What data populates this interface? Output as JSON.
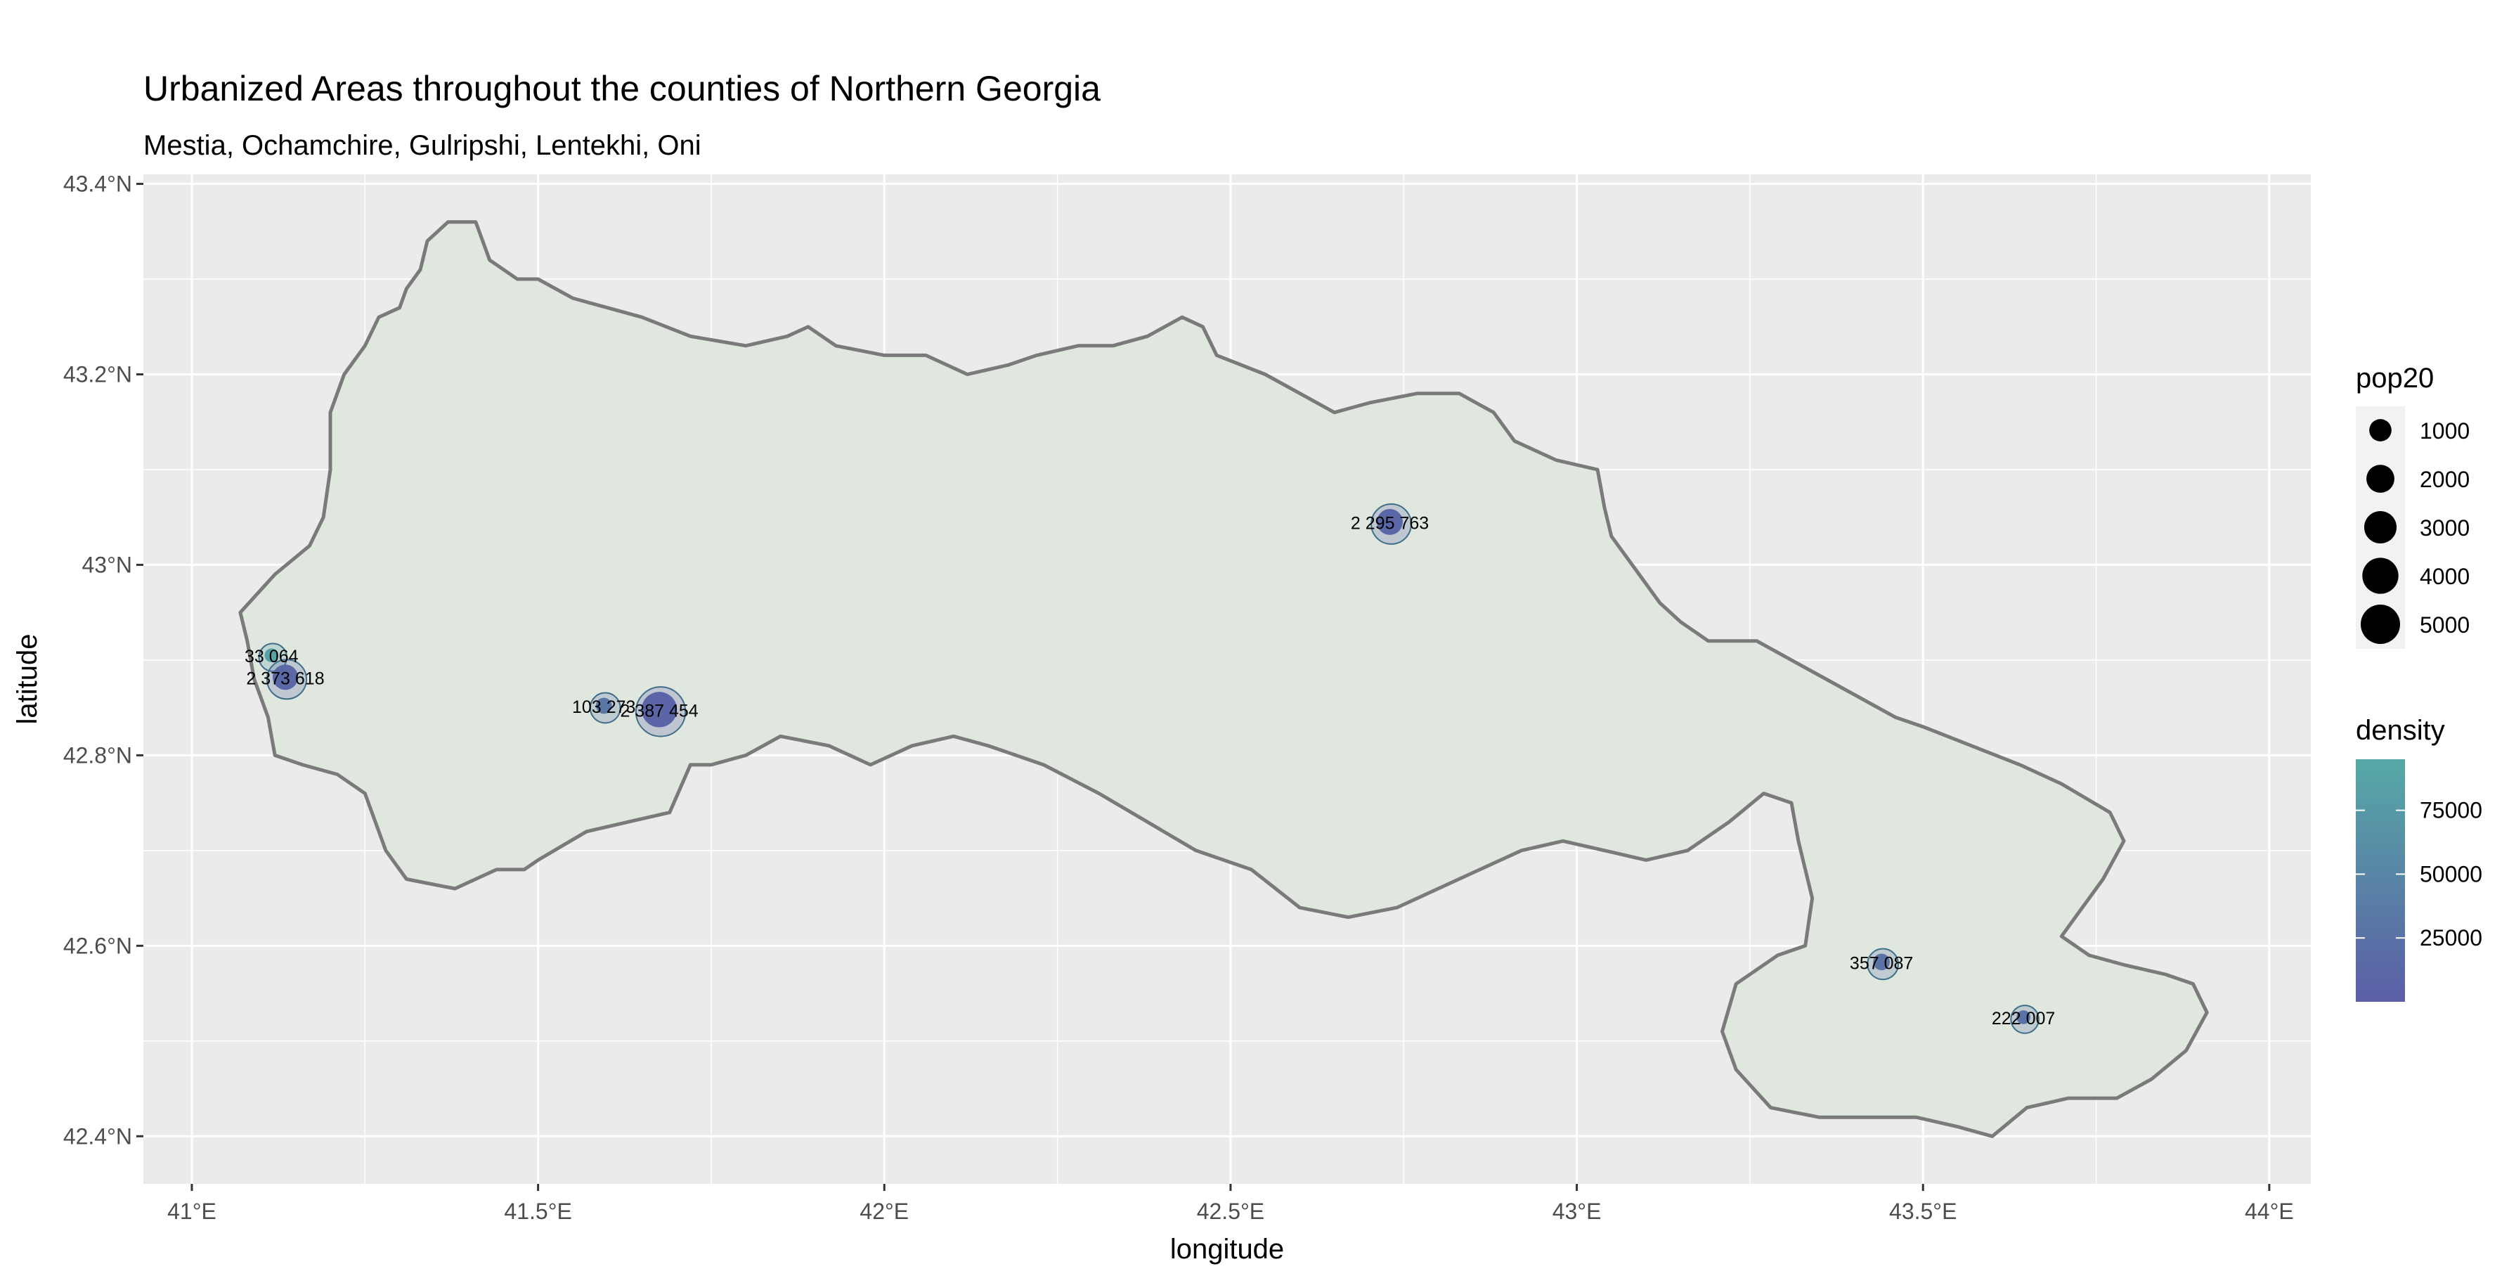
{
  "title": "Urbanized Areas throughout the counties of Northern Georgia",
  "subtitle": "Mestia, Ochamchire, Gulripshi, Lentekhi, Oni",
  "axes": {
    "xlabel": "longitude",
    "ylabel": "latitude",
    "xlim": [
      40.93,
      44.06
    ],
    "ylim": [
      42.35,
      43.41
    ],
    "x_ticks": [
      {
        "value": 41.0,
        "label": "41°E"
      },
      {
        "value": 41.5,
        "label": "41.5°E"
      },
      {
        "value": 42.0,
        "label": "42°E"
      },
      {
        "value": 42.5,
        "label": "42.5°E"
      },
      {
        "value": 43.0,
        "label": "43°E"
      },
      {
        "value": 43.5,
        "label": "43.5°E"
      },
      {
        "value": 44.0,
        "label": "44°E"
      }
    ],
    "y_ticks": [
      {
        "value": 42.4,
        "label": "42.4°N"
      },
      {
        "value": 42.6,
        "label": "42.6°N"
      },
      {
        "value": 42.8,
        "label": "42.8°N"
      },
      {
        "value": 43.0,
        "label": "43°N"
      },
      {
        "value": 43.2,
        "label": "43.2°N"
      },
      {
        "value": 43.4,
        "label": "43.4°N"
      }
    ],
    "grid": true
  },
  "colors": {
    "panel_bg": "#ebebeb",
    "grid": "#ffffff",
    "region_fill": "#e0e7df",
    "region_stroke": "#7a7a7a",
    "low_density": "#5b5ea6",
    "high_density": "#56a9a6"
  },
  "legend": {
    "size_title": "pop20",
    "size_items": [
      {
        "label": "1000",
        "value": 1000
      },
      {
        "label": "2000",
        "value": 2000
      },
      {
        "label": "3000",
        "value": 3000
      },
      {
        "label": "4000",
        "value": 4000
      },
      {
        "label": "5000",
        "value": 5000
      }
    ],
    "color_title": "density",
    "color_breaks": [
      {
        "label": "75000",
        "value": 75000
      },
      {
        "label": "50000",
        "value": 50000
      },
      {
        "label": "25000",
        "value": 25000
      }
    ],
    "color_range": [
      0,
      95000
    ],
    "placement": "right"
  },
  "chart_data": {
    "type": "map",
    "region_outline": [
      [
        41.07,
        42.95
      ],
      [
        41.12,
        42.99
      ],
      [
        41.17,
        43.02
      ],
      [
        41.19,
        43.05
      ],
      [
        41.2,
        43.1
      ],
      [
        41.2,
        43.16
      ],
      [
        41.22,
        43.2
      ],
      [
        41.25,
        43.23
      ],
      [
        41.27,
        43.26
      ],
      [
        41.3,
        43.27
      ],
      [
        41.31,
        43.29
      ],
      [
        41.33,
        43.31
      ],
      [
        41.34,
        43.34
      ],
      [
        41.37,
        43.36
      ],
      [
        41.41,
        43.36
      ],
      [
        41.43,
        43.32
      ],
      [
        41.47,
        43.3
      ],
      [
        41.5,
        43.3
      ],
      [
        41.55,
        43.28
      ],
      [
        41.6,
        43.27
      ],
      [
        41.65,
        43.26
      ],
      [
        41.72,
        43.24
      ],
      [
        41.8,
        43.23
      ],
      [
        41.86,
        43.24
      ],
      [
        41.89,
        43.25
      ],
      [
        41.93,
        43.23
      ],
      [
        42.0,
        43.22
      ],
      [
        42.06,
        43.22
      ],
      [
        42.12,
        43.2
      ],
      [
        42.18,
        43.21
      ],
      [
        42.22,
        43.22
      ],
      [
        42.28,
        43.23
      ],
      [
        42.33,
        43.23
      ],
      [
        42.38,
        43.24
      ],
      [
        42.43,
        43.26
      ],
      [
        42.46,
        43.25
      ],
      [
        42.48,
        43.22
      ],
      [
        42.55,
        43.2
      ],
      [
        42.6,
        43.18
      ],
      [
        42.65,
        43.16
      ],
      [
        42.7,
        43.17
      ],
      [
        42.77,
        43.18
      ],
      [
        42.83,
        43.18
      ],
      [
        42.88,
        43.16
      ],
      [
        42.91,
        43.13
      ],
      [
        42.97,
        43.11
      ],
      [
        43.03,
        43.1
      ],
      [
        43.04,
        43.06
      ],
      [
        43.05,
        43.03
      ],
      [
        43.09,
        42.99
      ],
      [
        43.12,
        42.96
      ],
      [
        43.15,
        42.94
      ],
      [
        43.19,
        42.92
      ],
      [
        43.26,
        42.92
      ],
      [
        43.31,
        42.9
      ],
      [
        43.36,
        42.88
      ],
      [
        43.41,
        42.86
      ],
      [
        43.46,
        42.84
      ],
      [
        43.5,
        42.83
      ],
      [
        43.57,
        42.81
      ],
      [
        43.64,
        42.79
      ],
      [
        43.7,
        42.77
      ],
      [
        43.77,
        42.74
      ],
      [
        43.79,
        42.71
      ],
      [
        43.76,
        42.67
      ],
      [
        43.73,
        42.64
      ],
      [
        43.7,
        42.61
      ],
      [
        43.74,
        42.59
      ],
      [
        43.79,
        42.58
      ],
      [
        43.85,
        42.57
      ],
      [
        43.89,
        42.56
      ],
      [
        43.91,
        42.53
      ],
      [
        43.88,
        42.49
      ],
      [
        43.83,
        42.46
      ],
      [
        43.78,
        42.44
      ],
      [
        43.71,
        42.44
      ],
      [
        43.65,
        42.43
      ],
      [
        43.6,
        42.4
      ],
      [
        43.55,
        42.41
      ],
      [
        43.49,
        42.42
      ],
      [
        43.42,
        42.42
      ],
      [
        43.35,
        42.42
      ],
      [
        43.28,
        42.43
      ],
      [
        43.23,
        42.47
      ],
      [
        43.21,
        42.51
      ],
      [
        43.23,
        42.56
      ],
      [
        43.29,
        42.59
      ],
      [
        43.33,
        42.6
      ],
      [
        43.34,
        42.65
      ],
      [
        43.32,
        42.71
      ],
      [
        43.31,
        42.75
      ],
      [
        43.27,
        42.76
      ],
      [
        43.22,
        42.73
      ],
      [
        43.16,
        42.7
      ],
      [
        43.1,
        42.69
      ],
      [
        43.04,
        42.7
      ],
      [
        42.98,
        42.71
      ],
      [
        42.92,
        42.7
      ],
      [
        42.86,
        42.68
      ],
      [
        42.8,
        42.66
      ],
      [
        42.74,
        42.64
      ],
      [
        42.67,
        42.63
      ],
      [
        42.6,
        42.64
      ],
      [
        42.53,
        42.68
      ],
      [
        42.45,
        42.7
      ],
      [
        42.38,
        42.73
      ],
      [
        42.31,
        42.76
      ],
      [
        42.23,
        42.79
      ],
      [
        42.15,
        42.81
      ],
      [
        42.1,
        42.82
      ],
      [
        42.04,
        42.81
      ],
      [
        41.98,
        42.79
      ],
      [
        41.92,
        42.81
      ],
      [
        41.85,
        42.82
      ],
      [
        41.8,
        42.8
      ],
      [
        41.75,
        42.79
      ],
      [
        41.72,
        42.79
      ],
      [
        41.69,
        42.74
      ],
      [
        41.63,
        42.73
      ],
      [
        41.57,
        42.72
      ],
      [
        41.5,
        42.69
      ],
      [
        41.48,
        42.68
      ],
      [
        41.47,
        42.68
      ],
      [
        41.44,
        42.68
      ],
      [
        41.38,
        42.66
      ],
      [
        41.31,
        42.67
      ],
      [
        41.28,
        42.7
      ],
      [
        41.25,
        42.76
      ],
      [
        41.21,
        42.78
      ],
      [
        41.16,
        42.79
      ],
      [
        41.12,
        42.8
      ],
      [
        41.11,
        42.84
      ],
      [
        41.09,
        42.88
      ],
      [
        41.08,
        42.92
      ],
      [
        41.07,
        42.95
      ]
    ],
    "urban_areas": [
      {
        "label": "2 295 763",
        "lon": 42.73,
        "lat": 43.045,
        "pop20": 1600,
        "density": 12000
      },
      {
        "label": "33 064",
        "lon": 41.115,
        "lat": 42.905,
        "pop20": 150,
        "density": 88000
      },
      {
        "label": "2 373 618",
        "lon": 41.135,
        "lat": 42.882,
        "pop20": 1500,
        "density": 14000
      },
      {
        "label": "103 273",
        "lon": 41.595,
        "lat": 42.852,
        "pop20": 300,
        "density": 30000
      },
      {
        "label": "2 387 454",
        "lon": 41.675,
        "lat": 42.848,
        "pop20": 3800,
        "density": 8000
      },
      {
        "label": "357 087",
        "lon": 43.44,
        "lat": 42.583,
        "pop20": 350,
        "density": 28000
      },
      {
        "label": "222 007",
        "lon": 43.645,
        "lat": 42.525,
        "pop20": 150,
        "density": 26000
      }
    ]
  }
}
